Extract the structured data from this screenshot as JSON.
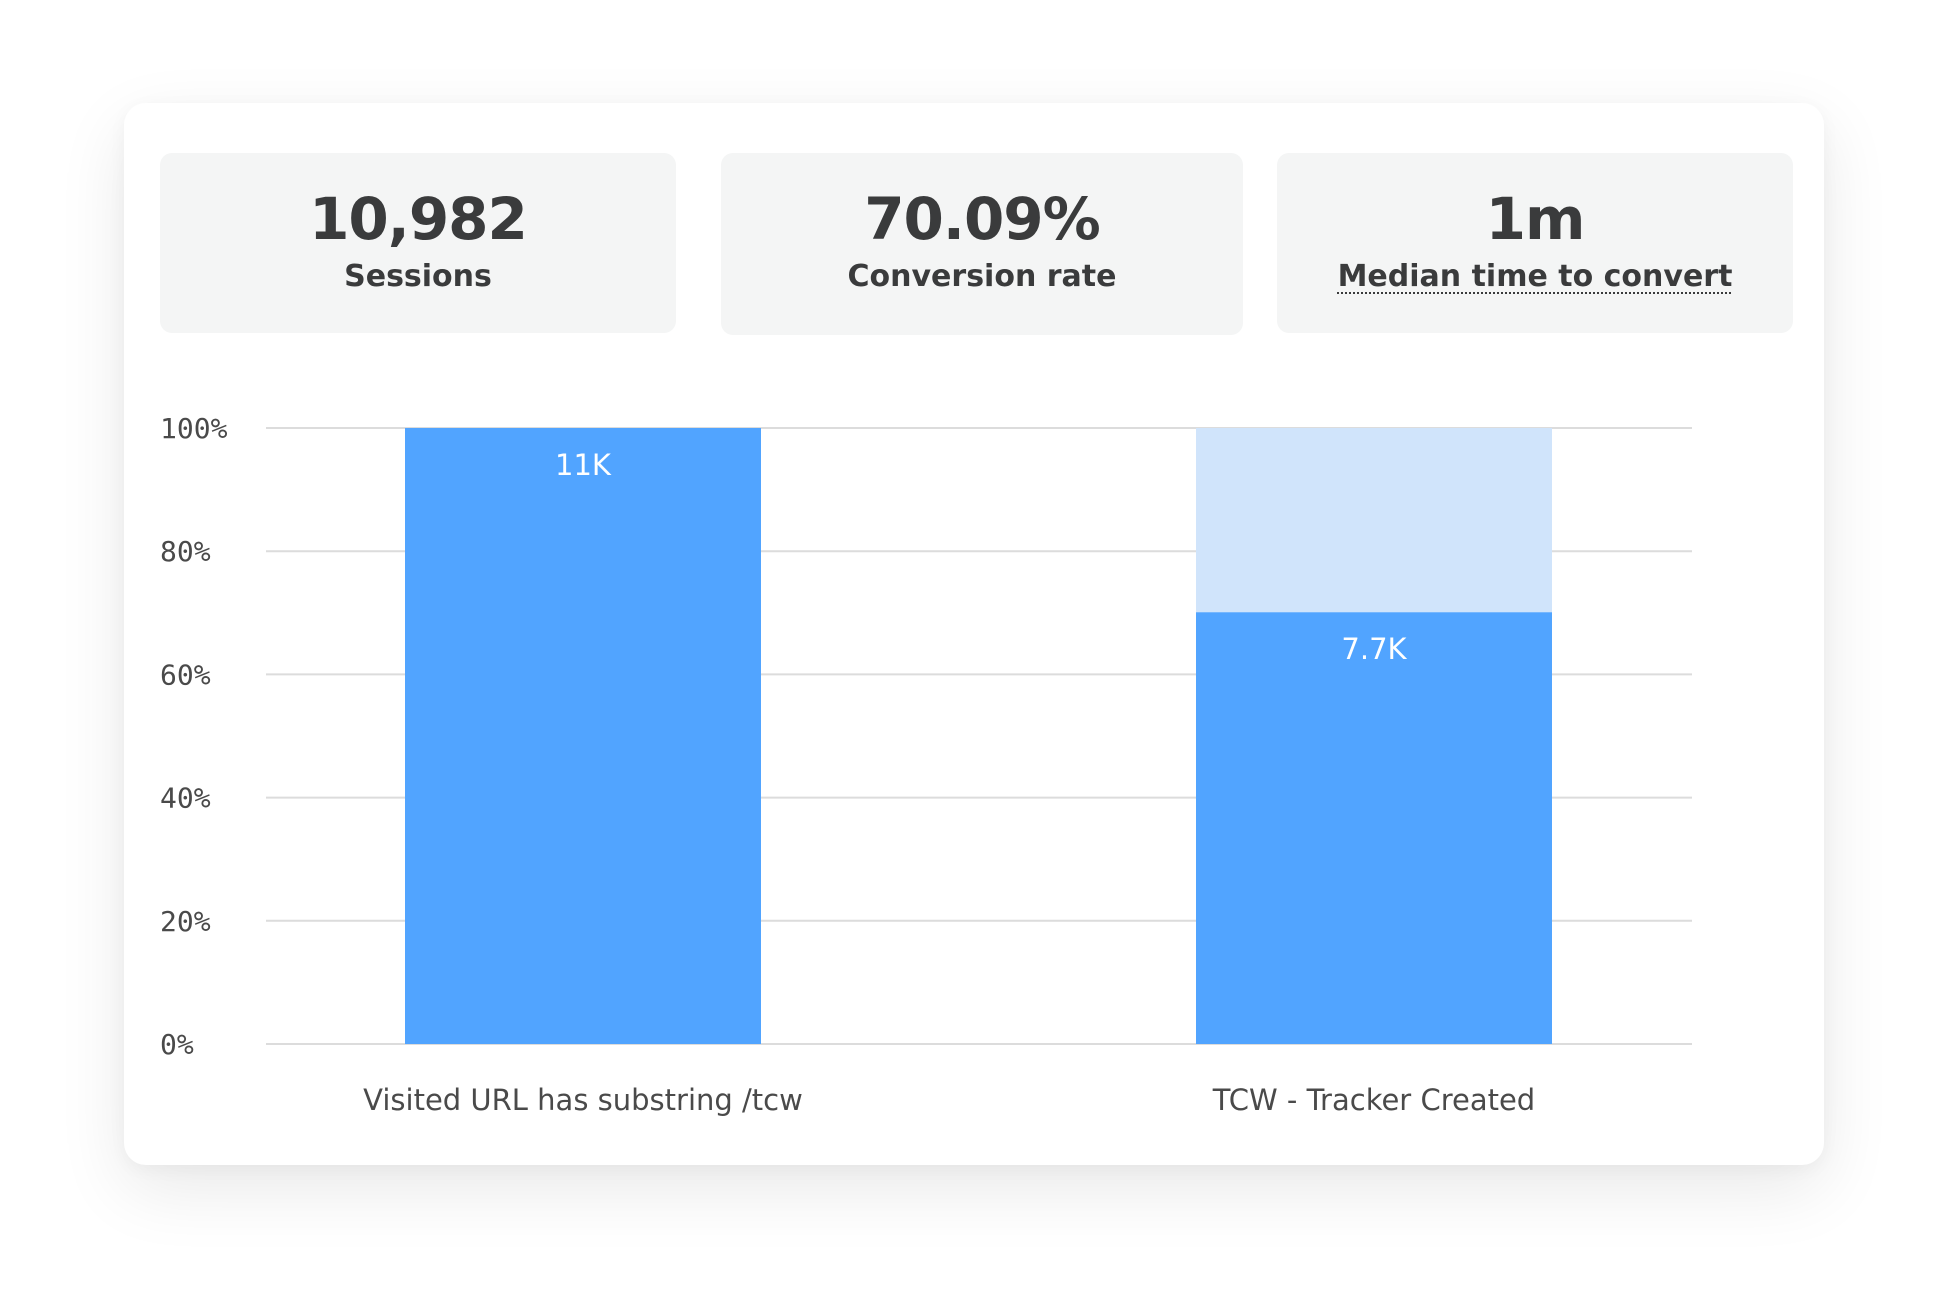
{
  "stats": [
    {
      "value": "10,982",
      "label": "Sessions"
    },
    {
      "value": "70.09%",
      "label": "Conversion rate"
    },
    {
      "value": "1m",
      "label": "Median time to convert"
    }
  ],
  "colors": {
    "bar": "#51a4ff",
    "bar_remainder": "#d0e4fb",
    "grid": "#dcdcdc",
    "text": "#3a3b3c"
  },
  "chart_data": {
    "type": "bar",
    "stacked": true,
    "categories": [
      "Visited URL has substring /tcw",
      "TCW - Tracker Created"
    ],
    "values": [
      100,
      70.09
    ],
    "data_labels": [
      "11K",
      "7.7K"
    ],
    "y_ticks": [
      "0%",
      "20%",
      "40%",
      "60%",
      "80%",
      "100%"
    ],
    "ylim": [
      0,
      100
    ],
    "grid": true
  }
}
